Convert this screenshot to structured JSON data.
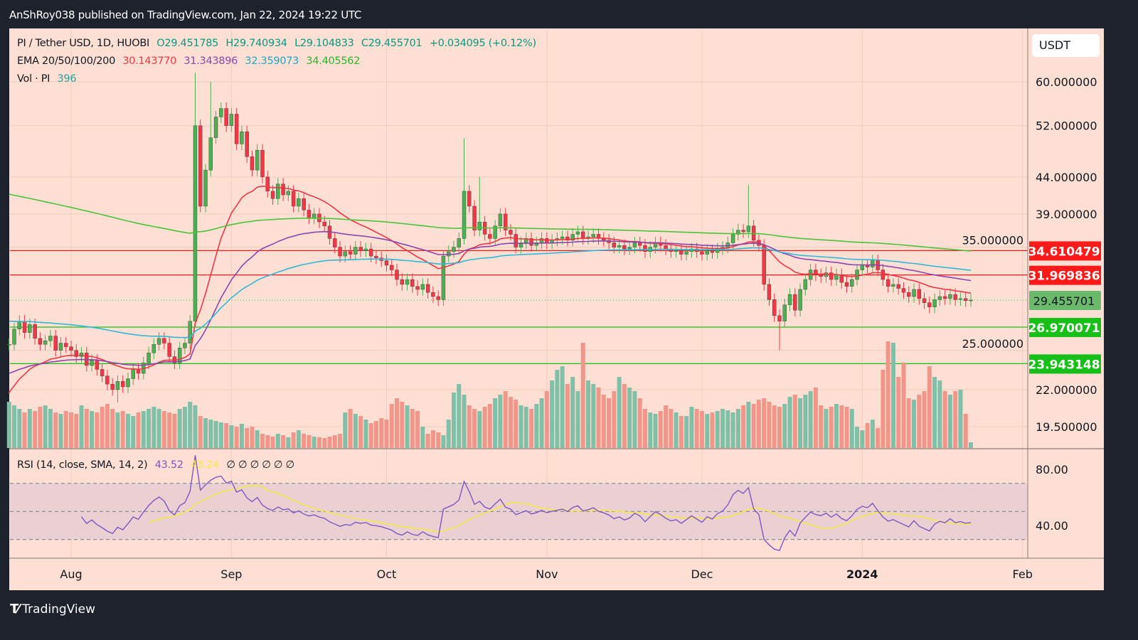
{
  "header": {
    "publisher": "AnShRoy038 published on TradingView.com, Jan 22, 2024 19:22 UTC"
  },
  "legend": {
    "symbol": "PI / Tether USD, 1D, HUOBI",
    "open": "O29.451785",
    "high": "H29.740934",
    "low": "L29.104833",
    "close": "C29.455701",
    "change": "+0.034095 (+0.12%)",
    "ema_label": "EMA 20/50/100/200",
    "ema_values": [
      "30.143770",
      "31.343896",
      "32.359073",
      "34.405562"
    ],
    "vol_label": "Vol · PI",
    "vol_value": "396",
    "rsi_label": "RSI (14, close, SMA, 14, 2)",
    "rsi_value": "43.52",
    "rsi_sma_value": "43.24",
    "rsi_extra": "∅ ∅ ∅ ∅ ∅ ∅"
  },
  "currency_button": "USDT",
  "footer_logo": "TradingView",
  "colors": {
    "up": "#4caf50",
    "down": "#f23645",
    "vol_up": "#80bfa8",
    "vol_down": "#f2968a",
    "ema20": "#f23645",
    "ema50": "#8e44ad",
    "ema100": "#31b8d8",
    "ema200": "#4cc23a",
    "rsi": "#7e57c2",
    "rsi_sma": "#f5e94a",
    "background": "#fde0d3"
  },
  "chart_data": {
    "type": "candlestick",
    "scale": "log",
    "start_date": "2023-07-20",
    "end_date": "2024-01-22",
    "y_ticks": [
      "60.000000",
      "52.000000",
      "44.000000",
      "39.000000",
      "35.000000",
      "25.000000",
      "22.000000",
      "19.500000"
    ],
    "x_ticks": [
      "Aug",
      "Sep",
      "Oct",
      "Nov",
      "Dec",
      "2024",
      "Feb"
    ],
    "rsi_ticks": [
      "80.00",
      "40.00"
    ],
    "close": [
      25.5,
      26.8,
      27.5,
      26.5,
      27.2,
      26.0,
      25.5,
      25.8,
      26.2,
      25.0,
      25.6,
      25.3,
      25.0,
      24.5,
      24.8,
      23.8,
      24.2,
      23.5,
      23.0,
      22.4,
      22.0,
      22.6,
      22.2,
      22.8,
      23.5,
      23.2,
      24.0,
      24.8,
      25.5,
      26.0,
      25.6,
      24.5,
      24.0,
      25.2,
      25.6,
      27.5,
      52.0,
      40.0,
      45.0,
      50.0,
      53.5,
      55.0,
      52.0,
      54,
      49,
      51,
      47,
      45,
      48,
      44,
      42,
      41,
      43,
      41.5,
      42,
      40,
      41,
      39.5,
      38.5,
      39,
      38,
      37.5,
      36,
      35,
      34,
      34.5,
      34.2,
      35,
      34.6,
      34.8,
      34,
      33.8,
      33.5,
      33,
      32.5,
      31.5,
      31,
      31.5,
      30.8,
      30.5,
      31,
      30.2,
      29.8,
      29.5,
      34,
      34.5,
      35,
      36,
      42,
      40,
      37,
      38,
      36.5,
      36,
      37.5,
      39,
      37,
      36.5,
      35,
      35.5,
      36,
      35.2,
      35.5,
      36,
      35.5,
      35.8,
      36,
      36.2,
      35.8,
      36.5,
      36.8,
      36,
      36.2,
      36.5,
      36,
      35.8,
      35.5,
      35,
      35.2,
      34.8,
      35,
      35.5,
      35.2,
      34.5,
      35,
      35.5,
      35.2,
      34.8,
      34.5,
      34.6,
      34.2,
      34.5,
      34.8,
      34.5,
      34.2,
      34.6,
      34.4,
      34.8,
      35,
      35.5,
      36.5,
      37,
      36.8,
      37.5,
      35.8,
      35.2,
      31,
      29.5,
      28,
      27.5,
      29,
      30,
      28.5,
      30.5,
      31.5,
      32.5,
      32,
      31.8,
      32.2,
      31.5,
      32,
      31.2,
      30.8,
      31.5,
      32.5,
      33,
      32.8,
      33.5,
      32.5,
      31.5,
      30.8,
      31,
      30.6,
      30.2,
      29.8,
      30.5,
      29.6,
      29.2,
      28.8,
      29.5,
      29.8,
      29.6,
      30,
      29.5,
      29.6,
      29.4,
      29.455701
    ],
    "notable_wicks": [
      {
        "date": "2023-08-10",
        "low": 21.1
      },
      {
        "date": "2023-08-25",
        "high": 61.8
      },
      {
        "date": "2023-08-28",
        "high": 60.0
      },
      {
        "date": "2023-10-16",
        "high": 49.9
      },
      {
        "date": "2023-10-19",
        "high": 44.0
      },
      {
        "date": "2023-12-10",
        "high": 42.9
      },
      {
        "date": "2023-12-16",
        "low": 25.0
      }
    ],
    "volume": [
      65,
      60,
      55,
      50,
      55,
      52,
      58,
      60,
      55,
      50,
      48,
      52,
      50,
      48,
      60,
      55,
      52,
      50,
      58,
      62,
      55,
      50,
      52,
      48,
      45,
      50,
      52,
      55,
      58,
      55,
      52,
      50,
      48,
      55,
      58,
      65,
      60,
      45,
      42,
      40,
      38,
      36,
      35,
      32,
      30,
      34,
      28,
      30,
      25,
      20,
      18,
      16,
      20,
      18,
      15,
      22,
      25,
      20,
      18,
      16,
      15,
      14,
      16,
      18,
      20,
      50,
      55,
      48,
      45,
      40,
      35,
      38,
      42,
      40,
      62,
      70,
      65,
      60,
      55,
      52,
      30,
      20,
      25,
      22,
      18,
      40,
      78,
      90,
      75,
      60,
      55,
      52,
      58,
      62,
      70,
      75,
      80,
      72,
      68,
      60,
      58,
      55,
      62,
      70,
      80,
      95,
      110,
      115,
      90,
      100,
      80,
      148,
      95,
      90,
      85,
      75,
      70,
      80,
      100,
      90,
      85,
      80,
      70,
      55,
      50,
      48,
      52,
      60,
      55,
      50,
      45,
      45,
      58,
      55,
      52,
      48,
      50,
      52,
      55,
      53,
      50,
      55,
      60,
      65,
      62,
      68,
      70,
      65,
      60,
      58,
      62,
      72,
      75,
      70,
      75,
      80,
      85,
      60,
      55,
      58,
      62,
      60,
      58,
      55,
      30,
      25,
      35,
      40,
      28,
      110,
      150,
      148,
      100,
      120,
      70,
      68,
      75,
      80,
      115,
      100,
      95,
      80,
      75,
      80,
      82,
      48,
      8
    ],
    "ema_initial": {
      "ema20": 21.8,
      "ema50": 23.2,
      "ema100": 27.5,
      "ema200": 41.6
    },
    "horizontal_levels": [
      {
        "value": "34.610479",
        "color": "#ff1a1a"
      },
      {
        "value": "31.969836",
        "color": "#ff1a1a"
      },
      {
        "value": "26.970071",
        "color": "#16c016"
      },
      {
        "value": "23.943148",
        "color": "#16c016"
      }
    ],
    "last_price": "29.455701",
    "rsi_bands": [
      70,
      50,
      30
    ]
  }
}
